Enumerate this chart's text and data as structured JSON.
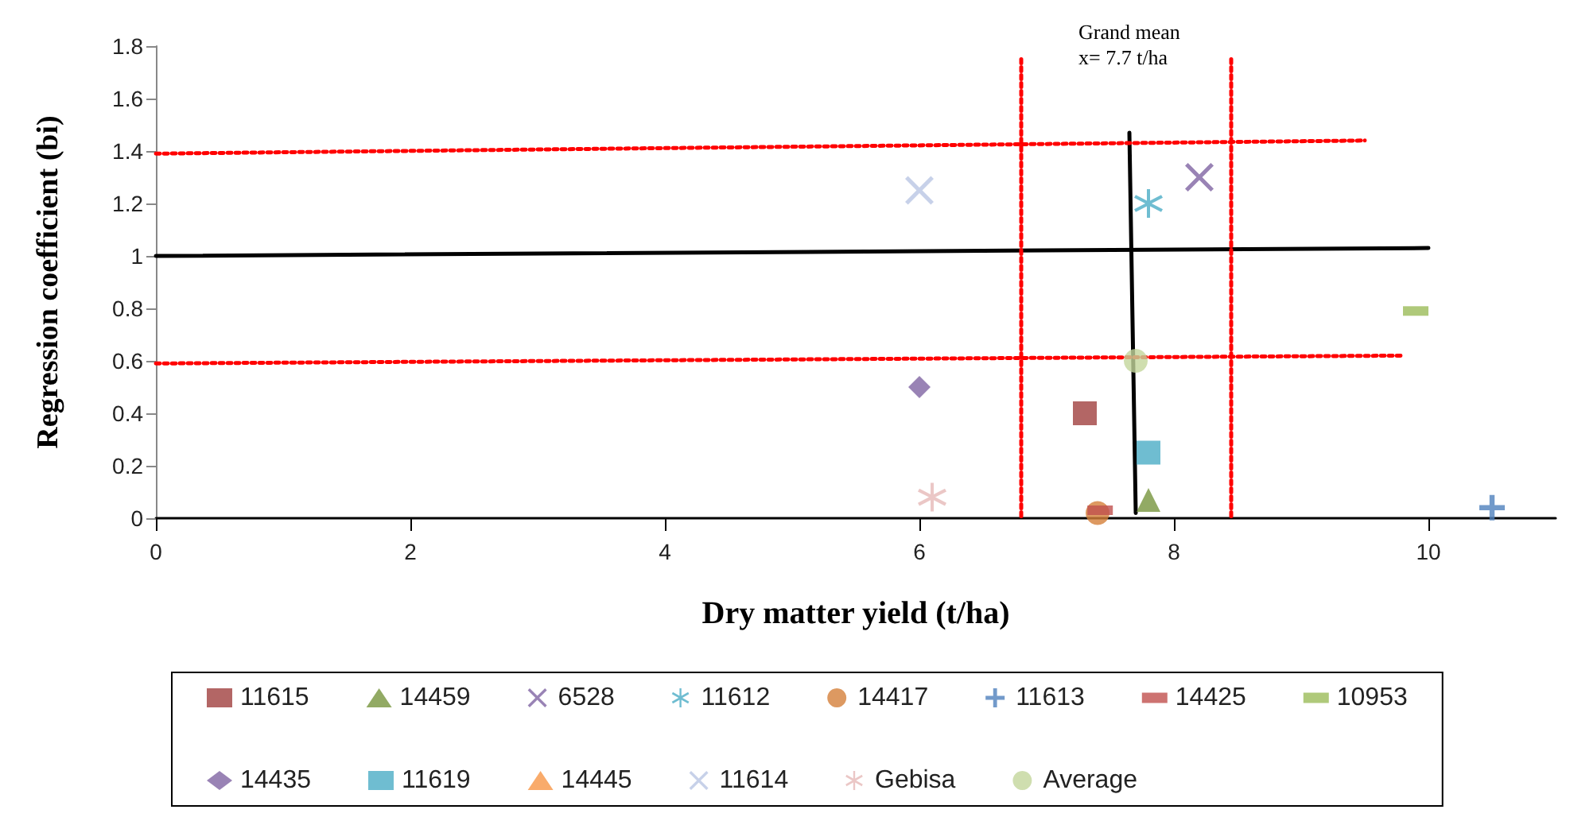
{
  "chart_data": {
    "type": "scatter",
    "xlabel": "Dry matter yield (t/ha)",
    "ylabel": "Regression coefficient (bi)",
    "xlim": [
      0,
      11
    ],
    "xticks": [
      0,
      2,
      4,
      6,
      8,
      10
    ],
    "ylim": [
      0,
      1.8
    ],
    "yticks": [
      0,
      0.2,
      0.4,
      0.6,
      0.8,
      1,
      1.2,
      1.4,
      1.6,
      1.8
    ],
    "grid": false,
    "legend": "bottom",
    "annotations": [
      "Grand mean\nx= 7.7 t/ha"
    ],
    "series": [
      {
        "name": "11615",
        "color": "#a0403f",
        "marker": "square",
        "x": [
          7.3
        ],
        "values": [
          0.4
        ]
      },
      {
        "name": "14459",
        "color": "#77953d",
        "marker": "triangle",
        "x": [
          7.8
        ],
        "values": [
          0.07
        ]
      },
      {
        "name": "6528",
        "color": "#8064a2",
        "marker": "x",
        "x": [
          8.2
        ],
        "values": [
          1.3
        ]
      },
      {
        "name": "11612",
        "color": "#4bacc6",
        "marker": "star",
        "x": [
          7.8
        ],
        "values": [
          1.2
        ]
      },
      {
        "name": "14417",
        "color": "#d4803a",
        "marker": "circle",
        "x": [
          7.4
        ],
        "values": [
          0.02
        ]
      },
      {
        "name": "11613",
        "color": "#4f81bd",
        "marker": "cross",
        "x": [
          10.5
        ],
        "values": [
          0.04
        ]
      },
      {
        "name": "14425",
        "color": "#c0504d",
        "x": [
          7.42
        ],
        "values": [
          0.03
        ]
      },
      {
        "name": "10953",
        "color": "#9bbb59",
        "x": [
          9.9
        ],
        "values": [
          0.79
        ]
      },
      {
        "name": "14435",
        "color": "#8064a2",
        "marker": "diamond",
        "x": [
          6.0
        ],
        "values": [
          0.5
        ]
      },
      {
        "name": "11619",
        "color": "#4bacc6",
        "marker": "square",
        "x": [
          7.8
        ],
        "values": [
          0.25
        ]
      },
      {
        "name": "14445",
        "color": "#f79646",
        "marker": "triangle",
        "x": [
          null
        ],
        "values": [
          null
        ]
      },
      {
        "name": "11614",
        "color": "#b9c6e4",
        "marker": "x",
        "x": [
          6.0
        ],
        "values": [
          1.25
        ]
      },
      {
        "name": "Gebisa",
        "color": "#e6b9b8",
        "marker": "star",
        "x": [
          6.1
        ],
        "values": [
          0.08
        ]
      },
      {
        "name": "Average",
        "color": "#c3d69b",
        "marker": "circle",
        "x": [
          7.7
        ],
        "values": [
          0.6
        ]
      },
      {
        "type": "line",
        "color": "#000000",
        "line_style": "solid",
        "marker": "none",
        "x": [
          0,
          10
        ],
        "values": [
          1.0,
          1.03
        ]
      },
      {
        "type": "line",
        "color": "#000000",
        "line_style": "solid",
        "marker": "none",
        "x": [
          7.65,
          7.7
        ],
        "values": [
          1.47,
          0.02
        ]
      },
      {
        "type": "line",
        "color": "#ff0000",
        "line_style": "dotted",
        "marker": "none",
        "x": [
          0,
          9.5
        ],
        "values": [
          1.39,
          1.44
        ]
      },
      {
        "type": "line",
        "color": "#ff0000",
        "line_style": "dotted",
        "marker": "none",
        "x": [
          0,
          9.8
        ],
        "values": [
          0.59,
          0.62
        ]
      },
      {
        "type": "line",
        "color": "#ff0000",
        "line_style": "dotted",
        "marker": "none",
        "x": [
          6.8,
          6.8
        ],
        "values": [
          1.75,
          0
        ]
      },
      {
        "type": "line",
        "color": "#ff0000",
        "line_style": "dotted",
        "marker": "none",
        "x": [
          8.45,
          8.45
        ],
        "values": [
          1.75,
          0
        ]
      }
    ]
  }
}
